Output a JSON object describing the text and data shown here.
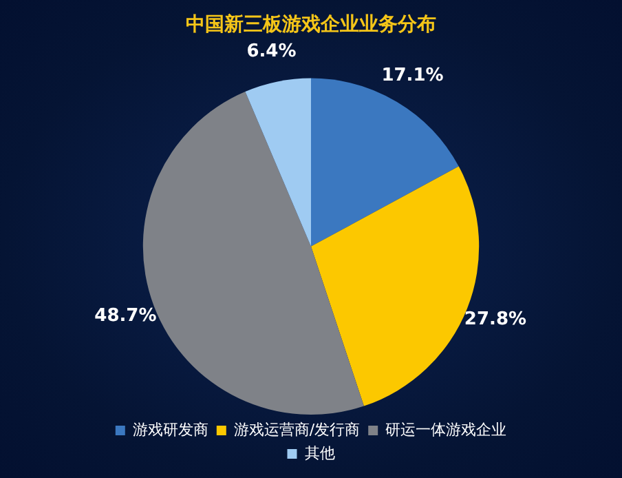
{
  "chart_data": {
    "type": "pie",
    "title": "中国新三板游戏企业业务分布",
    "categories": [
      "游戏研发商",
      "游戏运营商/发行商",
      "研运一体游戏企业",
      "其他"
    ],
    "values": [
      17.1,
      27.8,
      48.7,
      6.4
    ],
    "colors": [
      "#3b78c0",
      "#fcc800",
      "#7f8288",
      "#9fcbf2"
    ],
    "value_labels": [
      "17.1%",
      "27.8%",
      "48.7%",
      "6.4%"
    ],
    "legend": "bottom"
  }
}
